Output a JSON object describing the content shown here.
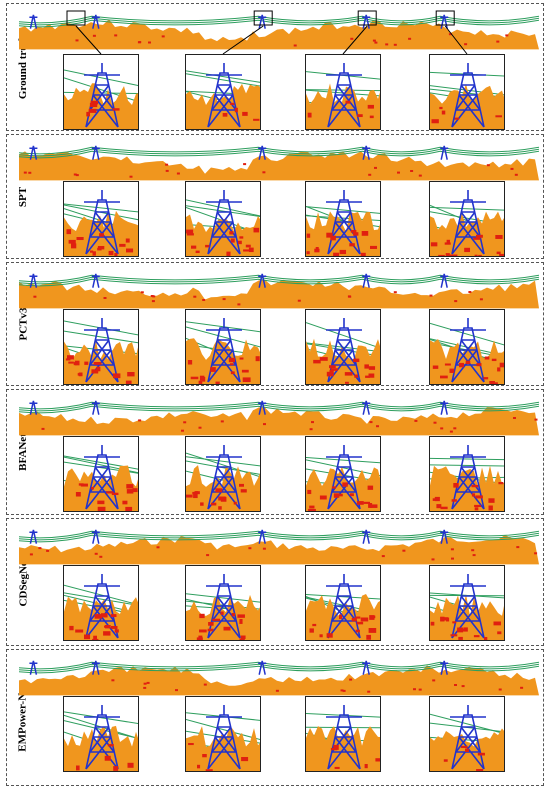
{
  "panels": [
    {
      "label": "Ground truth",
      "highlight_boxes": true
    },
    {
      "label": "SPT"
    },
    {
      "label": "PCTv3"
    },
    {
      "label": "BFANet"
    },
    {
      "label": "CDSegNet"
    },
    {
      "label": "EMPower-Net"
    }
  ],
  "legend_colors": {
    "ground": "#f0961e",
    "line": "#2e9e5e",
    "tower": "#2233cc",
    "error": "#e02010"
  }
}
